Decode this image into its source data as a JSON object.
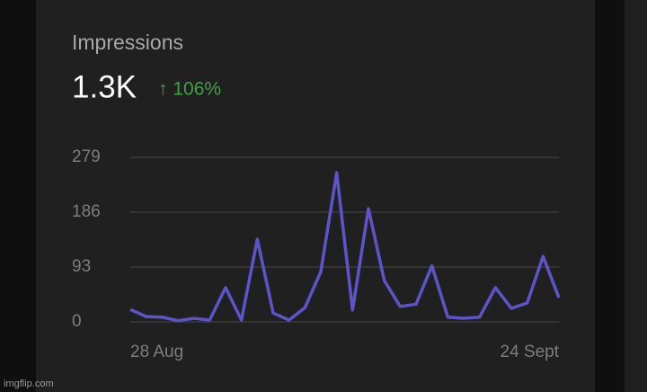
{
  "card": {
    "title": "Impressions",
    "total": "1.3K",
    "change": "↑ 106%"
  },
  "watermark": "imgflip.com",
  "chart_data": {
    "type": "line",
    "categories": [
      "28 Aug",
      null,
      null,
      null,
      null,
      null,
      null,
      null,
      null,
      null,
      null,
      null,
      null,
      null,
      null,
      null,
      null,
      null,
      null,
      null,
      null,
      null,
      null,
      null,
      null,
      null,
      null,
      "24 Sept"
    ],
    "series": [
      {
        "name": "Impressions",
        "color": "#5d54c9",
        "values": [
          21,
          9,
          8,
          2,
          6,
          3,
          58,
          3,
          140,
          15,
          3,
          24,
          85,
          253,
          20,
          192,
          70,
          26,
          30,
          95,
          8,
          6,
          8,
          58,
          23,
          32,
          111,
          41
        ]
      }
    ],
    "ylim": [
      0,
      279
    ],
    "yticks": [
      0,
      93,
      186,
      279
    ],
    "grid": true
  }
}
